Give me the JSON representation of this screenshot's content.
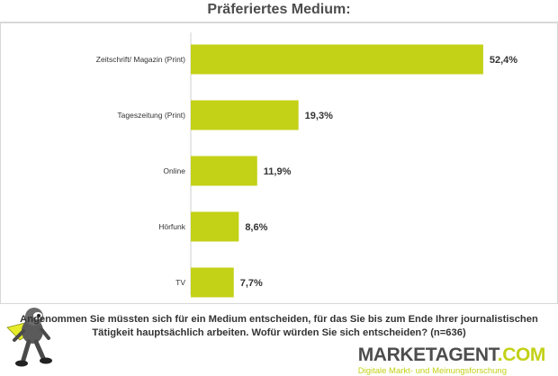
{
  "chart_data": {
    "type": "bar",
    "orientation": "horizontal",
    "title": "Präferiertes Medium:",
    "categories": [
      "Zeitschrift/ Magazin (Print)",
      "Tageszeitung (Print)",
      "Online",
      "Hörfunk",
      "TV"
    ],
    "values": [
      52.4,
      19.3,
      11.9,
      8.6,
      7.7
    ],
    "value_labels": [
      "52,4%",
      "19,3%",
      "11,9%",
      "8,6%",
      "7,7%"
    ],
    "unit": "%",
    "xlim": [
      0,
      55
    ],
    "grid": false,
    "bar_color": "#c3d117"
  },
  "footer": {
    "question": "Angenommen Sie müssten sich für ein Medium entscheiden, für das Sie bis zum Ende Ihrer journalistischen Tätigkeit hauptsächlich arbeiten. Wofür würden Sie sich entscheiden? (n=636)",
    "logo_part1": "MARKETAGENT",
    "logo_part2": ".COM",
    "logo_tagline": "Digitale Markt- und Meinungsforschung",
    "mascot_icon": "agent-mascot-icon"
  },
  "colors": {
    "accent": "#c3d117",
    "text": "#333333",
    "title": "#4d4d4d"
  }
}
